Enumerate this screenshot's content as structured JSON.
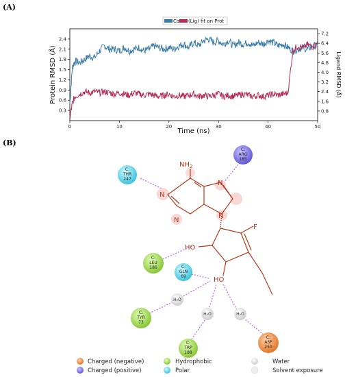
{
  "panels": {
    "a_label": "(A)",
    "b_label": "(B)"
  },
  "chart_data": {
    "type": "line",
    "title": "",
    "xlabel": "Time (ns)",
    "ylabel_left": "Protein RMSD (Å)",
    "ylabel_right": "Ligand RMSD (Å)",
    "xlim": [
      0,
      50
    ],
    "ylim_left": [
      0.0,
      2.7
    ],
    "ylim_right": [
      0.0,
      7.6
    ],
    "x_ticks": [
      0,
      10,
      20,
      30,
      40,
      50
    ],
    "y_ticks_left": [
      0.3,
      0.6,
      0.9,
      1.2,
      1.5,
      1.8,
      2.1,
      2.4
    ],
    "y_ticks_right": [
      0.8,
      1.6,
      2.4,
      3.2,
      4.0,
      4.8,
      5.6,
      6.4,
      7.2
    ],
    "legend": {
      "placement": "top-right",
      "entries": [
        "Cα",
        "(Lig) fit on Prot"
      ]
    },
    "series": [
      {
        "name": "Cα",
        "axis": "left",
        "color": "#3a7ca5",
        "x": [
          0,
          0.5,
          1,
          2,
          3,
          4,
          5,
          6,
          7,
          8,
          9,
          10,
          11,
          12,
          13,
          14,
          15,
          16,
          17,
          18,
          19,
          20,
          21,
          22,
          23,
          24,
          25,
          26,
          27,
          28,
          29,
          30,
          31,
          32,
          33,
          34,
          35,
          36,
          37,
          38,
          39,
          40,
          41,
          42,
          43,
          44,
          45,
          46,
          47,
          48,
          49,
          50
        ],
        "y": [
          0.5,
          1.55,
          1.75,
          1.7,
          1.8,
          1.9,
          1.85,
          2.05,
          2.2,
          2.1,
          2.1,
          2.05,
          2.15,
          2.05,
          2.1,
          2.15,
          2.05,
          2.1,
          2.2,
          2.15,
          2.1,
          2.15,
          2.1,
          2.2,
          2.25,
          2.15,
          2.3,
          2.2,
          2.35,
          2.4,
          2.3,
          2.35,
          2.25,
          2.35,
          2.2,
          2.3,
          2.25,
          2.3,
          2.2,
          2.3,
          2.25,
          2.35,
          2.3,
          2.2,
          2.25,
          2.15,
          2.05,
          2.1,
          2.15,
          2.1,
          2.2,
          2.2
        ]
      },
      {
        "name": "(Lig) fit on Prot",
        "axis": "right",
        "color": "#b52a55",
        "x": [
          0,
          0.5,
          1,
          2,
          3,
          4,
          5,
          6,
          7,
          8,
          9,
          10,
          11,
          12,
          13,
          14,
          15,
          16,
          17,
          18,
          19,
          20,
          21,
          22,
          23,
          24,
          25,
          26,
          27,
          28,
          29,
          30,
          31,
          32,
          33,
          34,
          35,
          36,
          37,
          38,
          39,
          40,
          41,
          42,
          43,
          44,
          45,
          46,
          47,
          48,
          49,
          50
        ],
        "y": [
          0.2,
          1.4,
          2.0,
          2.2,
          2.4,
          2.3,
          2.4,
          2.3,
          2.4,
          2.3,
          2.2,
          2.3,
          2.2,
          2.1,
          2.3,
          2.2,
          2.1,
          2.2,
          2.1,
          2.0,
          2.1,
          2.2,
          2.0,
          2.1,
          2.0,
          2.1,
          2.2,
          2.0,
          2.1,
          2.0,
          2.1,
          2.2,
          2.0,
          2.1,
          2.0,
          2.1,
          2.2,
          2.1,
          2.0,
          2.1,
          2.0,
          2.1,
          2.2,
          2.1,
          2.2,
          2.3,
          5.8,
          6.2,
          6.0,
          6.3,
          6.1,
          6.4
        ]
      }
    ]
  },
  "diagram": {
    "ligand_labels": {
      "nh2": "NH",
      "nh2_sub": "2",
      "ho1": "HO",
      "ho2": "HO",
      "f": "F"
    },
    "residues": [
      {
        "id": "thr",
        "prefix": "C:",
        "name": "THR",
        "num": "247",
        "type": "polar",
        "color": "#5dd4ec"
      },
      {
        "id": "arg",
        "prefix": "C:",
        "name": "ARG",
        "num": "185",
        "type": "charged_positive",
        "color": "#7a71e8"
      },
      {
        "id": "leu",
        "prefix": "C:",
        "name": "LEU",
        "num": "186",
        "type": "hydrophobic",
        "color": "#9ad64a"
      },
      {
        "id": "gln",
        "prefix": "C:",
        "name": "GLN",
        "num": "69",
        "type": "polar",
        "color": "#5dd4ec"
      },
      {
        "id": "tyr",
        "prefix": "C:",
        "name": "TYR",
        "num": "73",
        "type": "hydrophobic",
        "color": "#9ad64a"
      },
      {
        "id": "trp",
        "prefix": "C:",
        "name": "TRP",
        "num": "188",
        "type": "hydrophobic",
        "color": "#9ad64a"
      },
      {
        "id": "asp",
        "prefix": "C:",
        "name": "ASP",
        "num": "250",
        "type": "charged_negative",
        "color": "#f08a3c"
      }
    ],
    "waters": [
      {
        "id": "w1",
        "label": "H₂O"
      },
      {
        "id": "w2",
        "label": "H₂O"
      },
      {
        "id": "w3",
        "label": "H₂O"
      }
    ],
    "legend": [
      {
        "label": "Charged (negative)",
        "color": "#f08a3c"
      },
      {
        "label": "Charged (positive)",
        "color": "#7a71e8"
      },
      {
        "label": "Hydrophobic",
        "color": "#9ad64a"
      },
      {
        "label": "Polar",
        "color": "#5dd4ec"
      },
      {
        "label": "Water",
        "color": "#d9d9d9"
      },
      {
        "label": "Solvent exposure",
        "color": "#e8e8e8"
      }
    ]
  }
}
